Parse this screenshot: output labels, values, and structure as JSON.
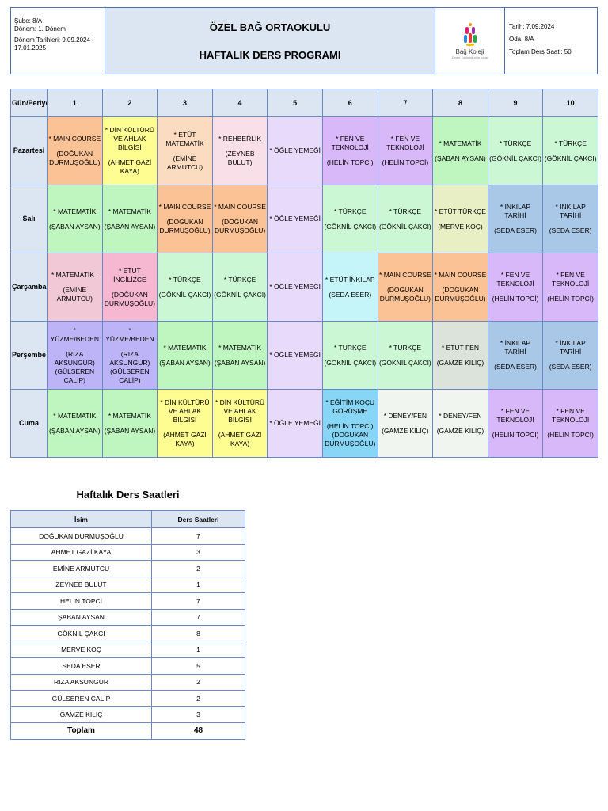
{
  "header": {
    "sube": "Şube: 8/A",
    "donem": "Dönem: 1. Dönem",
    "donem_tarihleri": "Dönem Tarihleri: 9.09.2024 - 17.01.2025",
    "school_name": "ÖZEL BAĞ ORTAOKULU",
    "program_title": "HAFTALIK DERS PROGRAMI",
    "logo_text": "Bağ Koleji",
    "logo_sub": "Zeytin Topluluğunun İncisi",
    "tarih": "Tarih: 7.09.2024",
    "oda": "Oda: 8/A",
    "toplam": "Toplam Ders Saati: 50"
  },
  "colors": {
    "main_course": "#fbc295",
    "din": "#fdfd91",
    "etut_mat": "#fbdcc1",
    "rehberlik": "#f8dfe8",
    "ogle": "#e8dafa",
    "fen": "#d8b8f8",
    "matematik": "#bff5bf",
    "turkce": "#ccf7d4",
    "inkilap": "#a9c7e6",
    "etut_turkce": "#e9efc4",
    "etut_ingilizce": "#f6b8d1",
    "mat_emine": "#f1c9d6",
    "etut_inkilap": "#c5f5f8",
    "yuzme": "#bcb4f7",
    "etut_fen": "#dbe3da",
    "egitim_kocu": "#88d6f6",
    "deney": "#f1f5f0"
  },
  "schedule": {
    "corner": "Gün/Periyod",
    "periods": [
      "1",
      "2",
      "3",
      "4",
      "5",
      "6",
      "7",
      "8",
      "9",
      "10"
    ],
    "days": [
      {
        "name": "Pazartesi",
        "cells": [
          {
            "course": "* MAIN COURSE",
            "teacher": "(DOĞUKAN DURMUŞOĞLU)",
            "color": "main_course"
          },
          {
            "course": "* DİN KÜLTÜRÜ VE AHLAK BİLGİSİ",
            "teacher": "(AHMET GAZİ KAYA)",
            "color": "din"
          },
          {
            "course": "* ETÜT MATEMATİK",
            "teacher": "(EMİNE ARMUTCU)",
            "color": "etut_mat"
          },
          {
            "course": "* REHBERLİK",
            "teacher": "(ZEYNEB BULUT)",
            "color": "rehberlik"
          },
          {
            "course": "* ÖĞLE YEMEĞİ",
            "teacher": "",
            "color": "ogle"
          },
          {
            "course": "* FEN VE TEKNOLOJİ",
            "teacher": "(HELİN TOPCİ)",
            "color": "fen"
          },
          {
            "course": "* FEN VE TEKNOLOJİ",
            "teacher": "(HELİN TOPCİ)",
            "color": "fen"
          },
          {
            "course": "* MATEMATİK",
            "teacher": "(ŞABAN AYSAN)",
            "color": "matematik"
          },
          {
            "course": "* TÜRKÇE",
            "teacher": "(GÖKNİL ÇAKCI)",
            "color": "turkce"
          },
          {
            "course": "* TÜRKÇE",
            "teacher": "(GÖKNİL ÇAKCI)",
            "color": "turkce"
          }
        ]
      },
      {
        "name": "Salı",
        "cells": [
          {
            "course": "* MATEMATİK",
            "teacher": "(ŞABAN AYSAN)",
            "color": "matematik"
          },
          {
            "course": "* MATEMATİK",
            "teacher": "(ŞABAN AYSAN)",
            "color": "matematik"
          },
          {
            "course": "* MAIN COURSE",
            "teacher": "(DOĞUKAN DURMUŞOĞLU)",
            "color": "main_course"
          },
          {
            "course": "* MAIN COURSE",
            "teacher": "(DOĞUKAN DURMUŞOĞLU)",
            "color": "main_course"
          },
          {
            "course": "* ÖĞLE YEMEĞİ",
            "teacher": "",
            "color": "ogle"
          },
          {
            "course": "* TÜRKÇE",
            "teacher": "(GÖKNİL ÇAKCI)",
            "color": "turkce"
          },
          {
            "course": "* TÜRKÇE",
            "teacher": "(GÖKNİL ÇAKCI)",
            "color": "turkce"
          },
          {
            "course": "* ETÜT TÜRKÇE",
            "teacher": "(MERVE KOÇ)",
            "color": "etut_turkce"
          },
          {
            "course": "* İNKILAP TARİHİ",
            "teacher": "(SEDA ESER)",
            "color": "inkilap"
          },
          {
            "course": "* İNKILAP TARİHİ",
            "teacher": "(SEDA ESER)",
            "color": "inkilap"
          }
        ]
      },
      {
        "name": "Çarşamba",
        "cells": [
          {
            "course": "* MATEMATİK .",
            "teacher": "(EMİNE ARMUTCU)",
            "color": "mat_emine"
          },
          {
            "course": "* ETÜT İNGİLİZCE",
            "teacher": "(DOĞUKAN DURMUŞOĞLU)",
            "color": "etut_ingilizce"
          },
          {
            "course": "* TÜRKÇE",
            "teacher": "(GÖKNİL ÇAKCI)",
            "color": "turkce"
          },
          {
            "course": "* TÜRKÇE",
            "teacher": "(GÖKNİL ÇAKCI)",
            "color": "turkce"
          },
          {
            "course": "* ÖĞLE YEMEĞİ",
            "teacher": "",
            "color": "ogle"
          },
          {
            "course": "* ETÜT İNKILAP",
            "teacher": "(SEDA ESER)",
            "color": "etut_inkilap"
          },
          {
            "course": "* MAIN COURSE",
            "teacher": "(DOĞUKAN DURMUŞOĞLU)",
            "color": "main_course"
          },
          {
            "course": "* MAIN COURSE",
            "teacher": "(DOĞUKAN DURMUŞOĞLU)",
            "color": "main_course"
          },
          {
            "course": "* FEN VE TEKNOLOJİ",
            "teacher": "(HELİN TOPCİ)",
            "color": "fen"
          },
          {
            "course": "* FEN VE TEKNOLOJİ",
            "teacher": "(HELİN TOPCİ)",
            "color": "fen"
          }
        ]
      },
      {
        "name": "Perşembe",
        "cells": [
          {
            "course": "* YÜZME/BEDEN",
            "teacher": "(RIZA AKSUNGUR) (GÜLSEREN CALİP)",
            "color": "yuzme"
          },
          {
            "course": "* YÜZME/BEDEN",
            "teacher": "(RIZA AKSUNGUR) (GÜLSEREN CALİP)",
            "color": "yuzme"
          },
          {
            "course": "* MATEMATİK",
            "teacher": "(ŞABAN AYSAN)",
            "color": "matematik"
          },
          {
            "course": "* MATEMATİK",
            "teacher": "(ŞABAN AYSAN)",
            "color": "matematik"
          },
          {
            "course": "* ÖĞLE YEMEĞİ",
            "teacher": "",
            "color": "ogle"
          },
          {
            "course": "* TÜRKÇE",
            "teacher": "(GÖKNİL ÇAKCI)",
            "color": "turkce"
          },
          {
            "course": "* TÜRKÇE",
            "teacher": "(GÖKNİL ÇAKCI)",
            "color": "turkce"
          },
          {
            "course": "* ETÜT FEN",
            "teacher": "(GAMZE KILIÇ)",
            "color": "etut_fen"
          },
          {
            "course": "* İNKILAP TARİHİ",
            "teacher": "(SEDA ESER)",
            "color": "inkilap"
          },
          {
            "course": "* İNKILAP TARİHİ",
            "teacher": "(SEDA ESER)",
            "color": "inkilap"
          }
        ]
      },
      {
        "name": "Cuma",
        "cells": [
          {
            "course": "* MATEMATİK",
            "teacher": "(ŞABAN AYSAN)",
            "color": "matematik"
          },
          {
            "course": "* MATEMATİK",
            "teacher": "(ŞABAN AYSAN)",
            "color": "matematik"
          },
          {
            "course": "* DİN KÜLTÜRÜ VE AHLAK BİLGİSİ",
            "teacher": "(AHMET GAZİ KAYA)",
            "color": "din"
          },
          {
            "course": "* DİN KÜLTÜRÜ VE AHLAK BİLGİSİ",
            "teacher": "(AHMET GAZİ KAYA)",
            "color": "din"
          },
          {
            "course": "* ÖĞLE YEMEĞİ",
            "teacher": "",
            "color": "ogle"
          },
          {
            "course": "* EĞİTİM KOÇU GÖRÜŞME",
            "teacher": "(HELİN TOPCİ) (DOĞUKAN DURMUŞOĞLU)",
            "color": "egitim_kocu"
          },
          {
            "course": "* DENEY/FEN",
            "teacher": "(GAMZE KILIÇ)",
            "color": "deney"
          },
          {
            "course": "* DENEY/FEN",
            "teacher": "(GAMZE KILIÇ)",
            "color": "deney"
          },
          {
            "course": "* FEN VE TEKNOLOJİ",
            "teacher": "(HELİN TOPCİ)",
            "color": "fen"
          },
          {
            "course": "* FEN VE TEKNOLOJİ",
            "teacher": "(HELİN TOPCİ)",
            "color": "fen"
          }
        ]
      }
    ]
  },
  "hours": {
    "title": "Haftalık Ders Saatleri",
    "col_name": "İsim",
    "col_hours": "Ders Saatleri",
    "rows": [
      {
        "name": "DOĞUKAN DURMUŞOĞLU",
        "hours": "7"
      },
      {
        "name": "AHMET GAZİ KAYA",
        "hours": "3"
      },
      {
        "name": "EMİNE ARMUTCU",
        "hours": "2"
      },
      {
        "name": "ZEYNEB BULUT",
        "hours": "1"
      },
      {
        "name": "HELİN TOPCİ",
        "hours": "7"
      },
      {
        "name": "ŞABAN AYSAN",
        "hours": "7"
      },
      {
        "name": "GÖKNİL ÇAKCI",
        "hours": "8"
      },
      {
        "name": "MERVE KOÇ",
        "hours": "1"
      },
      {
        "name": "SEDA ESER",
        "hours": "5"
      },
      {
        "name": "RIZA AKSUNGUR",
        "hours": "2"
      },
      {
        "name": "GÜLSEREN CALİP",
        "hours": "2"
      },
      {
        "name": "GAMZE KILIÇ",
        "hours": "3"
      }
    ],
    "total_label": "Toplam",
    "total_value": "48"
  }
}
